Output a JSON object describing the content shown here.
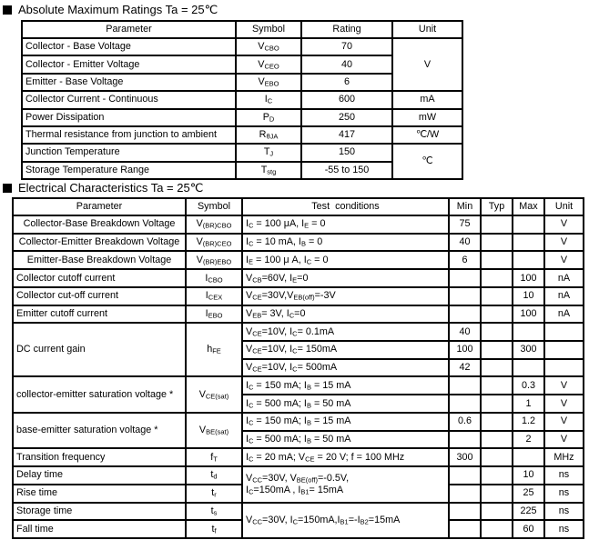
{
  "page": {
    "background_color": "#ffffff",
    "text_color": "#000000",
    "border_color": "#000000"
  },
  "sections": [
    {
      "title": "Absolute Maximum Ratings Ta = 25℃",
      "table": {
        "columns": [
          "Parameter",
          "Symbol",
          "Rating",
          "Unit"
        ],
        "rows": [
          [
            {
              "t": "Collector - Base Voltage",
              "a": "l"
            },
            {
              "t": "V~CBO~"
            },
            {
              "t": "70"
            },
            {
              "t": "V",
              "rs": 3
            }
          ],
          [
            {
              "t": "Collector - Emitter Voltage",
              "a": "l"
            },
            {
              "t": "V~CEO~"
            },
            {
              "t": "40"
            }
          ],
          [
            {
              "t": "Emitter - Base Voltage",
              "a": "l"
            },
            {
              "t": "V~EBO~"
            },
            {
              "t": "6"
            }
          ],
          [
            {
              "t": "Collector Current  - Continuous",
              "a": "l"
            },
            {
              "t": "I~C~"
            },
            {
              "t": "600"
            },
            {
              "t": "mA"
            }
          ],
          [
            {
              "t": "Power Dissipation",
              "a": "l"
            },
            {
              "t": "P~D~"
            },
            {
              "t": "250"
            },
            {
              "t": "mW"
            }
          ],
          [
            {
              "t": "Thermal resistance from junction to ambient",
              "a": "l"
            },
            {
              "t": "R~θJA~"
            },
            {
              "t": "417"
            },
            {
              "t": "℃/W"
            }
          ],
          [
            {
              "t": "Junction Temperature",
              "a": "l"
            },
            {
              "t": "T~J~"
            },
            {
              "t": "150"
            },
            {
              "t": "℃",
              "rs": 2
            }
          ],
          [
            {
              "t": "Storage Temperature Range",
              "a": "l"
            },
            {
              "t": "T~stg~"
            },
            {
              "t": "-55 to 150"
            }
          ]
        ]
      }
    },
    {
      "title": "Electrical Characteristics Ta = 25℃",
      "table": {
        "columns": [
          "Parameter",
          "Symbol",
          "Test  conditions",
          "Min",
          "Typ",
          "Max",
          "Unit"
        ],
        "rows": [
          [
            {
              "t": "Collector-Base Breakdown Voltage"
            },
            {
              "t": "V~(BR)CBO~"
            },
            {
              "t": "I~C~ = 100 μA, I~E~ = 0",
              "a": "l"
            },
            {
              "t": "75"
            },
            {
              "t": ""
            },
            {
              "t": ""
            },
            {
              "t": "V"
            }
          ],
          [
            {
              "t": "Collector-Emitter Breakdown Voltage"
            },
            {
              "t": "V~(BR)CEO~"
            },
            {
              "t": "I~C~ = 10 mA, I~B~ = 0",
              "a": "l"
            },
            {
              "t": "40"
            },
            {
              "t": ""
            },
            {
              "t": ""
            },
            {
              "t": "V"
            }
          ],
          [
            {
              "t": "Emitter-Base Breakdown Voltage"
            },
            {
              "t": "V~(BR)EBO~"
            },
            {
              "t": "I~E~ = 100 μ A, I~C~ = 0",
              "a": "l"
            },
            {
              "t": "6"
            },
            {
              "t": ""
            },
            {
              "t": ""
            },
            {
              "t": "V"
            }
          ],
          [
            {
              "t": "Collector cutoff current",
              "a": "l"
            },
            {
              "t": "I~CBO~"
            },
            {
              "t": "V~CB~=60V, I~E~=0",
              "a": "l"
            },
            {
              "t": ""
            },
            {
              "t": ""
            },
            {
              "t": "100"
            },
            {
              "t": "nA"
            }
          ],
          [
            {
              "t": "Collector cut-off current",
              "a": "l"
            },
            {
              "t": "I~CEX~"
            },
            {
              "t": "V~CE~=30V,V~EB(off)~=-3V",
              "a": "l"
            },
            {
              "t": ""
            },
            {
              "t": ""
            },
            {
              "t": "10"
            },
            {
              "t": "nA"
            }
          ],
          [
            {
              "t": "Emitter cutoff current",
              "a": "l"
            },
            {
              "t": "I~EBO~"
            },
            {
              "t": "V~EB~= 3V, I~C~=0",
              "a": "l"
            },
            {
              "t": ""
            },
            {
              "t": ""
            },
            {
              "t": "100"
            },
            {
              "t": "nA"
            }
          ],
          [
            {
              "t": "DC current gain",
              "a": "l",
              "rs": 3
            },
            {
              "t": "h~FE~",
              "rs": 3
            },
            {
              "t": "V~CE~=10V, I~C~= 0.1mA",
              "a": "l"
            },
            {
              "t": "40"
            },
            {
              "t": ""
            },
            {
              "t": ""
            },
            {
              "t": ""
            }
          ],
          [
            {
              "t": "V~CE~=10V, I~C~= 150mA",
              "a": "l"
            },
            {
              "t": "100"
            },
            {
              "t": ""
            },
            {
              "t": "300"
            },
            {
              "t": ""
            }
          ],
          [
            {
              "t": "V~CE~=10V, I~C~= 500mA",
              "a": "l"
            },
            {
              "t": "42"
            },
            {
              "t": ""
            },
            {
              "t": ""
            },
            {
              "t": ""
            }
          ],
          [
            {
              "t": "collector-emitter saturation voltage  *",
              "a": "l",
              "rs": 2
            },
            {
              "t": "V~CE(sat)~",
              "rs": 2
            },
            {
              "t": "I~C~ = 150 mA; I~B~ = 15 mA",
              "a": "l"
            },
            {
              "t": ""
            },
            {
              "t": ""
            },
            {
              "t": "0.3"
            },
            {
              "t": "V"
            }
          ],
          [
            {
              "t": "I~C~ = 500 mA; I~B~ = 50 mA",
              "a": "l"
            },
            {
              "t": ""
            },
            {
              "t": ""
            },
            {
              "t": "1"
            },
            {
              "t": "V"
            }
          ],
          [
            {
              "t": "base-emitter saturation voltage  *",
              "a": "l",
              "rs": 2
            },
            {
              "t": "V~BE(sat)~",
              "rs": 2
            },
            {
              "t": "I~C~ = 150 mA; I~B~ = 15 mA",
              "a": "l"
            },
            {
              "t": "0.6"
            },
            {
              "t": ""
            },
            {
              "t": "1.2"
            },
            {
              "t": "V"
            }
          ],
          [
            {
              "t": "I~C~ = 500 mA; I~B~ = 50 mA",
              "a": "l"
            },
            {
              "t": ""
            },
            {
              "t": ""
            },
            {
              "t": "2"
            },
            {
              "t": "V"
            }
          ],
          [
            {
              "t": "Transition frequency",
              "a": "l"
            },
            {
              "t": "f~T~"
            },
            {
              "t": "I~C~ = 20 mA; V~CE~ = 20 V; f = 100 MHz",
              "a": "l"
            },
            {
              "t": "300"
            },
            {
              "t": ""
            },
            {
              "t": ""
            },
            {
              "t": "MHz"
            }
          ],
          [
            {
              "t": "Delay time",
              "a": "l"
            },
            {
              "t": "t~d~"
            },
            {
              "t": "V~CC~=30V, V~BE(off)~=-0.5V,\nI~C~=150mA , I~B1~= 15mA",
              "a": "l",
              "rs": 2,
              "ml": true
            },
            {
              "t": ""
            },
            {
              "t": ""
            },
            {
              "t": "10"
            },
            {
              "t": "ns"
            }
          ],
          [
            {
              "t": "Rise time",
              "a": "l"
            },
            {
              "t": "t~r~"
            },
            {
              "t": ""
            },
            {
              "t": ""
            },
            {
              "t": "25"
            },
            {
              "t": "ns"
            }
          ],
          [
            {
              "t": "Storage time",
              "a": "l"
            },
            {
              "t": "t~s~"
            },
            {
              "t": "V~CC~=30V, I~C~=150mA,I~B1~=-I~B2~=15mA",
              "a": "l",
              "rs": 2
            },
            {
              "t": ""
            },
            {
              "t": ""
            },
            {
              "t": "225"
            },
            {
              "t": "ns"
            }
          ],
          [
            {
              "t": "Fall time",
              "a": "l"
            },
            {
              "t": "t~f~"
            },
            {
              "t": ""
            },
            {
              "t": ""
            },
            {
              "t": "60"
            },
            {
              "t": "ns"
            }
          ]
        ]
      }
    }
  ]
}
